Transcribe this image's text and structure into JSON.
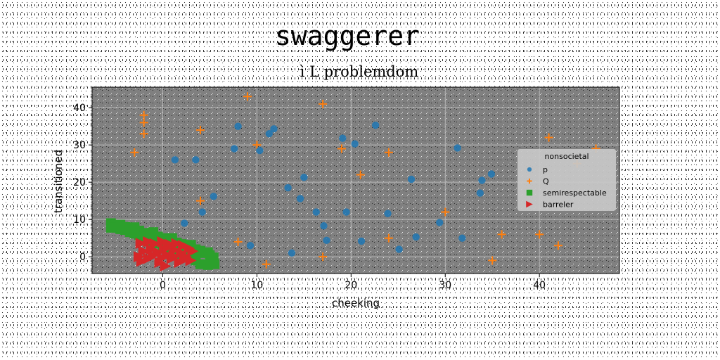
{
  "chart_data": {
    "type": "scatter",
    "title": "swaggerer",
    "subtitle": "ì L problemdom",
    "xlabel": "cheeking",
    "ylabel": "transitioned",
    "xlim": [
      -7.5,
      48.5
    ],
    "ylim": [
      -4.5,
      45.5
    ],
    "xticks": [
      0,
      10,
      20,
      30,
      40
    ],
    "yticks": [
      0,
      10,
      20,
      30,
      40
    ],
    "grid": true,
    "legend_title": "nonsocietal",
    "legend_position": "right",
    "colors": {
      "plot_bg": "#808080",
      "grid": "#b8b8b8",
      "p": "#1f77b4",
      "Q": "#ff7f0e",
      "semirespectable": "#2ca02c",
      "barreler": "#d62728"
    },
    "series": [
      {
        "name": "p",
        "marker": "circle",
        "points": [
          [
            1.3,
            26
          ],
          [
            3.5,
            26
          ],
          [
            2.3,
            9
          ],
          [
            4.2,
            12
          ],
          [
            5.4,
            16.2
          ],
          [
            0.6,
            5
          ],
          [
            7.6,
            29
          ],
          [
            8,
            35
          ],
          [
            9.3,
            3
          ],
          [
            10.3,
            28.5
          ],
          [
            11.3,
            33
          ],
          [
            11.8,
            34.3
          ],
          [
            13.3,
            18.5
          ],
          [
            13.7,
            1
          ],
          [
            14.6,
            15.6
          ],
          [
            15,
            21.3
          ],
          [
            16.3,
            12
          ],
          [
            17.1,
            8.3
          ],
          [
            17.4,
            4.4
          ],
          [
            19.1,
            31.8
          ],
          [
            19.5,
            12
          ],
          [
            20.4,
            30.3
          ],
          [
            21.1,
            4.2
          ],
          [
            22.6,
            35.3
          ],
          [
            23.9,
            11.6
          ],
          [
            25.1,
            2
          ],
          [
            26.4,
            20.8
          ],
          [
            26.9,
            5.3
          ],
          [
            29.4,
            9.2
          ],
          [
            31.3,
            29.2
          ],
          [
            31.8,
            5
          ],
          [
            33.7,
            17.1
          ],
          [
            33.9,
            20.5
          ],
          [
            34.9,
            22.2
          ]
        ]
      },
      {
        "name": "Q",
        "marker": "plus",
        "points": [
          [
            -3,
            28
          ],
          [
            -2,
            38
          ],
          [
            -2,
            36
          ],
          [
            -2,
            33
          ],
          [
            4,
            34
          ],
          [
            4,
            15
          ],
          [
            8,
            4
          ],
          [
            9,
            43
          ],
          [
            10,
            30
          ],
          [
            11,
            -2
          ],
          [
            17,
            0
          ],
          [
            17,
            41
          ],
          [
            19,
            29
          ],
          [
            21,
            22
          ],
          [
            24,
            28
          ],
          [
            24,
            5
          ],
          [
            30,
            12
          ],
          [
            35,
            -1
          ],
          [
            36,
            6
          ],
          [
            40,
            6
          ],
          [
            41,
            32
          ],
          [
            42,
            3
          ],
          [
            44,
            25
          ],
          [
            46,
            29
          ]
        ]
      },
      {
        "name": "semirespectable",
        "marker": "square",
        "points": [
          [
            -5.5,
            9
          ],
          [
            -5,
            8.5
          ],
          [
            -4.5,
            8.6
          ],
          [
            -4,
            8
          ],
          [
            -3.5,
            7.8
          ],
          [
            -3,
            7.3
          ],
          [
            -2.5,
            7
          ],
          [
            -2,
            6.4
          ],
          [
            -1.5,
            6.2
          ],
          [
            -1,
            5.6
          ],
          [
            -0.5,
            5.4
          ],
          [
            0,
            5
          ],
          [
            0.5,
            4.6
          ],
          [
            1,
            4.2
          ],
          [
            1.5,
            3.8
          ],
          [
            2,
            3.4
          ],
          [
            2.5,
            3
          ],
          [
            3,
            2.6
          ],
          [
            3.5,
            2
          ],
          [
            4,
            1.6
          ],
          [
            4.5,
            1
          ],
          [
            5,
            0.4
          ],
          [
            5.4,
            -0.2
          ],
          [
            5.5,
            -2
          ],
          [
            4.8,
            -2.2
          ],
          [
            4,
            -2
          ],
          [
            3.5,
            -1
          ],
          [
            3,
            -0.2
          ],
          [
            2.5,
            0.2
          ],
          [
            2,
            0.8
          ],
          [
            1.5,
            1.4
          ],
          [
            1,
            2
          ],
          [
            0.5,
            2.4
          ],
          [
            0,
            3
          ],
          [
            -0.5,
            3.6
          ],
          [
            -1,
            4.2
          ],
          [
            -1.5,
            4.6
          ],
          [
            -2,
            5.2
          ],
          [
            -2.5,
            5.8
          ],
          [
            -3,
            6.2
          ],
          [
            -3.5,
            6.6
          ],
          [
            -4,
            7.2
          ],
          [
            -4.5,
            7.4
          ],
          [
            -5,
            7.8
          ],
          [
            -5.5,
            7.8
          ],
          [
            -3,
            7.9
          ],
          [
            -1,
            6.6
          ],
          [
            1,
            5
          ],
          [
            3,
            3.2
          ],
          [
            4.8,
            1.2
          ]
        ]
      },
      {
        "name": "barreler",
        "marker": "triangle-right",
        "points": [
          [
            -2.3,
            3.6
          ],
          [
            -2,
            1.5
          ],
          [
            -2.5,
            0
          ],
          [
            -1.5,
            4
          ],
          [
            -1.2,
            2
          ],
          [
            -1.5,
            -0.5
          ],
          [
            -0.8,
            3.5
          ],
          [
            -0.5,
            1.2
          ],
          [
            -0.3,
            -1.5
          ],
          [
            0,
            4
          ],
          [
            0.2,
            2
          ],
          [
            0.3,
            -2.5
          ],
          [
            0.5,
            0.5
          ],
          [
            0.8,
            3.3
          ],
          [
            1,
            -0.5
          ],
          [
            1.3,
            1.8
          ],
          [
            1.5,
            3.5
          ],
          [
            1.8,
            -1.5
          ],
          [
            2,
            1
          ],
          [
            2.2,
            3
          ],
          [
            2.5,
            0
          ],
          [
            2.8,
            2.3
          ],
          [
            3,
            -1
          ],
          [
            3.2,
            1.5
          ],
          [
            -2.2,
            -1.2
          ],
          [
            -1,
            0.3
          ],
          [
            0,
            -0.3
          ],
          [
            1.2,
            0.2
          ],
          [
            2.3,
            -0.8
          ],
          [
            0.6,
            2.8
          ]
        ]
      }
    ]
  }
}
